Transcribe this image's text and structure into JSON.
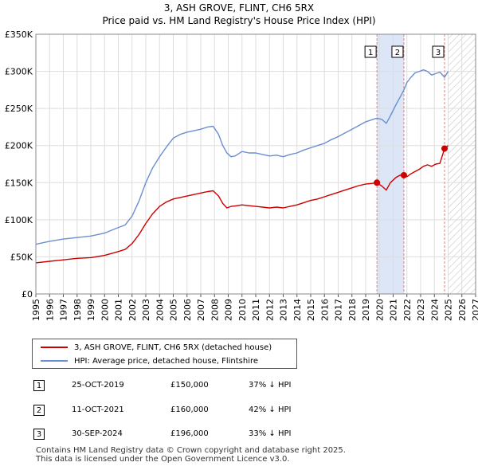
{
  "title_line1": "3, ASH GROVE, FLINT, CH6 5RX",
  "title_line2": "Price paid vs. HM Land Registry's House Price Index (HPI)",
  "colors": {
    "property": "#cc0000",
    "hpi": "#6a8fcf",
    "shade": "#dde6f7",
    "grid": "#dddddd",
    "vline": "#e08080"
  },
  "legend": {
    "property": "3, ASH GROVE, FLINT, CH6 5RX (detached house)",
    "hpi": "HPI: Average price, detached house, Flintshire"
  },
  "transactions": [
    {
      "num": "1",
      "date": "25-OCT-2019",
      "price": "£150,000",
      "hpi": "37% ↓ HPI"
    },
    {
      "num": "2",
      "date": "11-OCT-2021",
      "price": "£160,000",
      "hpi": "42% ↓ HPI"
    },
    {
      "num": "3",
      "date": "30-SEP-2024",
      "price": "£196,000",
      "hpi": "33% ↓ HPI"
    }
  ],
  "footer_line1": "Contains HM Land Registry data © Crown copyright and database right 2025.",
  "footer_line2": "This data is licensed under the Open Government Licence v3.0.",
  "chart_data": {
    "type": "line",
    "xlim": [
      1995,
      2027
    ],
    "ylim": [
      0,
      350000
    ],
    "yticks": [
      0,
      50000,
      100000,
      150000,
      200000,
      250000,
      300000,
      350000
    ],
    "ytick_labels": [
      "£0",
      "£50K",
      "£100K",
      "£150K",
      "£200K",
      "£250K",
      "£300K",
      "£350K"
    ],
    "xticks": [
      "1995",
      "1996",
      "1997",
      "1998",
      "1999",
      "2000",
      "2001",
      "2002",
      "2003",
      "2004",
      "2005",
      "2006",
      "2007",
      "2008",
      "2009",
      "2010",
      "2011",
      "2012",
      "2013",
      "2014",
      "2015",
      "2016",
      "2017",
      "2018",
      "2019",
      "2020",
      "2021",
      "2022",
      "2023",
      "2024",
      "2025",
      "2026",
      "2027"
    ],
    "shaded_range": [
      2019.82,
      2021.78
    ],
    "hatched_from": 2025.0,
    "series": [
      {
        "name": "HPI: Average price, detached house, Flintshire",
        "x": [
          1995.0,
          1996.0,
          1997.0,
          1998.0,
          1999.0,
          2000.0,
          2000.8,
          2001.5,
          2002.0,
          2002.5,
          2003.0,
          2003.5,
          2004.0,
          2004.5,
          2005.0,
          2005.5,
          2006.0,
          2006.5,
          2007.0,
          2007.5,
          2007.9,
          2008.3,
          2008.6,
          2008.9,
          2009.2,
          2009.5,
          2010.0,
          2010.5,
          2011.0,
          2011.5,
          2012.0,
          2012.5,
          2013.0,
          2013.5,
          2014.0,
          2014.5,
          2015.0,
          2015.5,
          2016.0,
          2016.5,
          2017.0,
          2017.5,
          2018.0,
          2018.5,
          2019.0,
          2019.5,
          2019.82,
          2020.2,
          2020.5,
          2020.8,
          2021.2,
          2021.5,
          2021.78,
          2022.0,
          2022.3,
          2022.6,
          2022.9,
          2023.2,
          2023.5,
          2023.8,
          2024.1,
          2024.4,
          2024.74,
          2025.0
        ],
        "y": [
          67000,
          71000,
          74000,
          76000,
          78000,
          82000,
          88000,
          93000,
          105000,
          125000,
          150000,
          170000,
          185000,
          198000,
          210000,
          215000,
          218000,
          220000,
          222000,
          225000,
          226000,
          215000,
          200000,
          190000,
          185000,
          186000,
          192000,
          190000,
          190000,
          188000,
          186000,
          187000,
          185000,
          188000,
          190000,
          194000,
          197000,
          200000,
          203000,
          208000,
          212000,
          217000,
          222000,
          227000,
          232000,
          235000,
          237000,
          235000,
          230000,
          240000,
          255000,
          265000,
          275000,
          285000,
          292000,
          298000,
          300000,
          302000,
          300000,
          295000,
          297000,
          299000,
          292000,
          300000
        ]
      },
      {
        "name": "3, ASH GROVE, FLINT, CH6 5RX (detached house)",
        "x": [
          1995.0,
          1996.0,
          1997.0,
          1998.0,
          1999.0,
          2000.0,
          2000.8,
          2001.5,
          2002.0,
          2002.5,
          2003.0,
          2003.5,
          2004.0,
          2004.5,
          2005.0,
          2005.5,
          2006.0,
          2006.5,
          2007.0,
          2007.5,
          2007.9,
          2008.3,
          2008.6,
          2008.9,
          2009.2,
          2009.5,
          2010.0,
          2010.5,
          2011.0,
          2011.5,
          2012.0,
          2012.5,
          2013.0,
          2013.5,
          2014.0,
          2014.5,
          2015.0,
          2015.5,
          2016.0,
          2016.5,
          2017.0,
          2017.5,
          2018.0,
          2018.5,
          2019.0,
          2019.5,
          2019.82,
          2020.2,
          2020.5,
          2020.8,
          2021.2,
          2021.5,
          2021.78,
          2022.0,
          2022.3,
          2022.6,
          2022.9,
          2023.2,
          2023.5,
          2023.8,
          2024.1,
          2024.4,
          2024.74,
          2025.0
        ],
        "y": [
          42000,
          44000,
          46000,
          48000,
          49000,
          52000,
          56000,
          60000,
          68000,
          80000,
          95000,
          108000,
          118000,
          124000,
          128000,
          130000,
          132000,
          134000,
          136000,
          138000,
          139000,
          132000,
          122000,
          116000,
          118000,
          118500,
          120000,
          119000,
          118000,
          117000,
          116000,
          117000,
          116000,
          118000,
          120000,
          123000,
          126000,
          128000,
          131000,
          134000,
          137000,
          140000,
          143000,
          146000,
          148000,
          149000,
          150000,
          145000,
          140000,
          150000,
          157000,
          160000,
          160000,
          158000,
          162000,
          165000,
          168000,
          172000,
          174000,
          172000,
          175000,
          176000,
          196000,
          200000
        ]
      }
    ],
    "sales": [
      {
        "label": "1",
        "x": 2019.82,
        "y": 150000
      },
      {
        "label": "2",
        "x": 2021.78,
        "y": 160000
      },
      {
        "label": "3",
        "x": 2024.74,
        "y": 196000
      }
    ]
  }
}
